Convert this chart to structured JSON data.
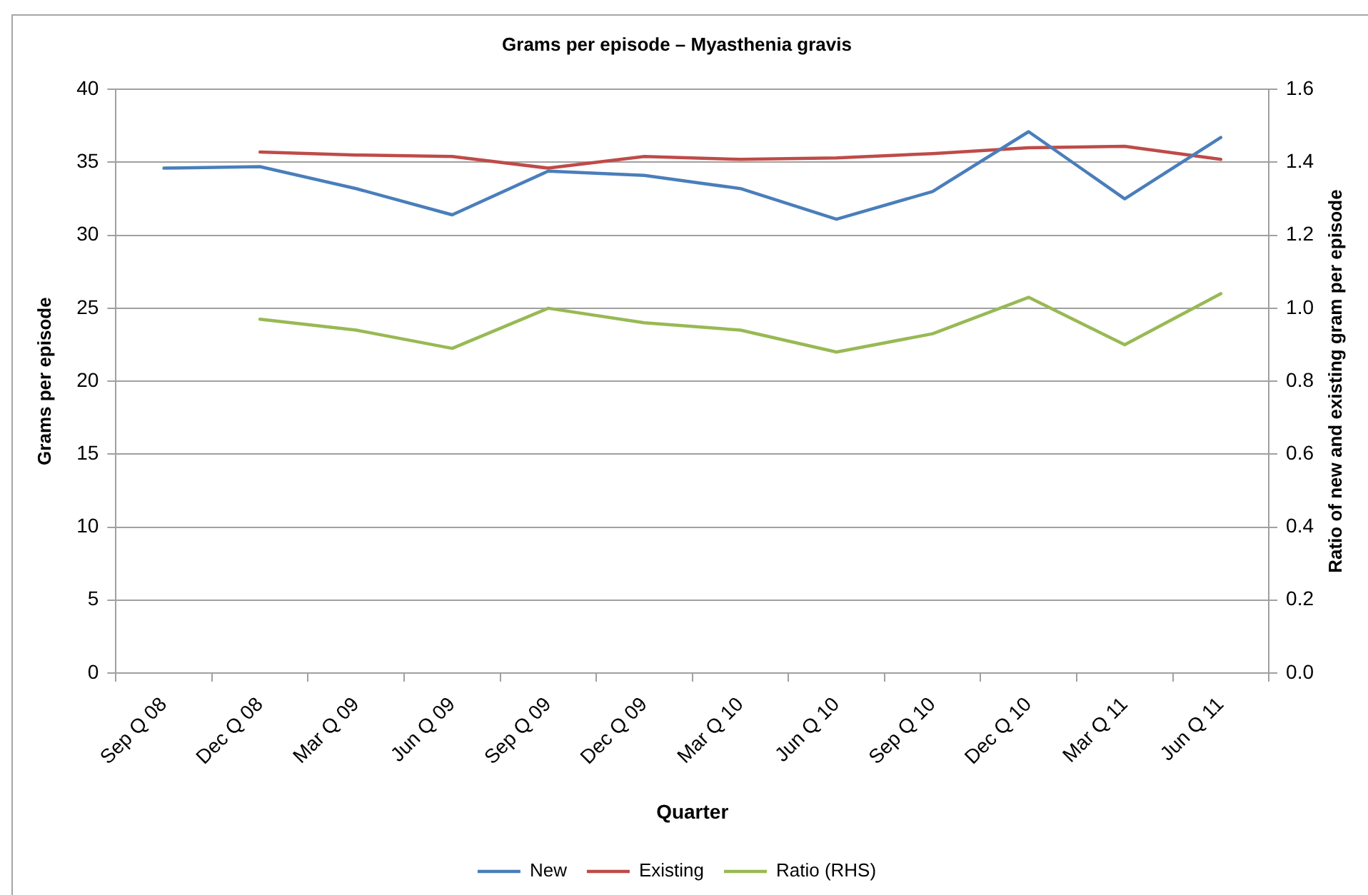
{
  "chart_data": {
    "type": "line",
    "title": "Grams per episode – Myasthenia gravis",
    "xlabel": "Quarter",
    "ylabel": "Grams per episode",
    "y2label": "Ratio of new and existing gram per episode",
    "categories": [
      "Sep Q 08",
      "Dec Q 08",
      "Mar Q 09",
      "Jun Q 09",
      "Sep Q 09",
      "Dec Q 09",
      "Mar Q 10",
      "Jun Q 10",
      "Sep Q 10",
      "Dec Q 10",
      "Mar Q 11",
      "Jun Q 11"
    ],
    "series": [
      {
        "name": "New",
        "color": "#4a7ebb",
        "values": [
          34.6,
          34.7,
          33.2,
          31.4,
          34.4,
          34.1,
          33.2,
          31.1,
          33.0,
          37.1,
          32.5,
          36.7
        ]
      },
      {
        "name": "Existing",
        "color": "#be4b48",
        "values": [
          null,
          35.7,
          35.5,
          35.4,
          34.6,
          35.4,
          35.2,
          35.3,
          35.6,
          36.0,
          36.1,
          35.2
        ]
      },
      {
        "name": "Ratio (RHS)",
        "color": "#98b954",
        "axis": "y2",
        "values": [
          null,
          0.97,
          0.94,
          0.89,
          1.0,
          0.96,
          0.94,
          0.88,
          0.93,
          1.03,
          0.9,
          1.04
        ]
      }
    ],
    "ylim": [
      0,
      40
    ],
    "yticks": [
      0,
      5,
      10,
      15,
      20,
      25,
      30,
      35,
      40
    ],
    "y2lim": [
      0,
      1.6
    ],
    "y2ticks": [
      {
        "value": 0,
        "label": "0.0"
      },
      0.2,
      0.4,
      0.6,
      0.8,
      {
        "value": 1,
        "label": "1.0"
      },
      1.2,
      1.4,
      1.6
    ],
    "grid": "y",
    "legend": "bottom"
  }
}
